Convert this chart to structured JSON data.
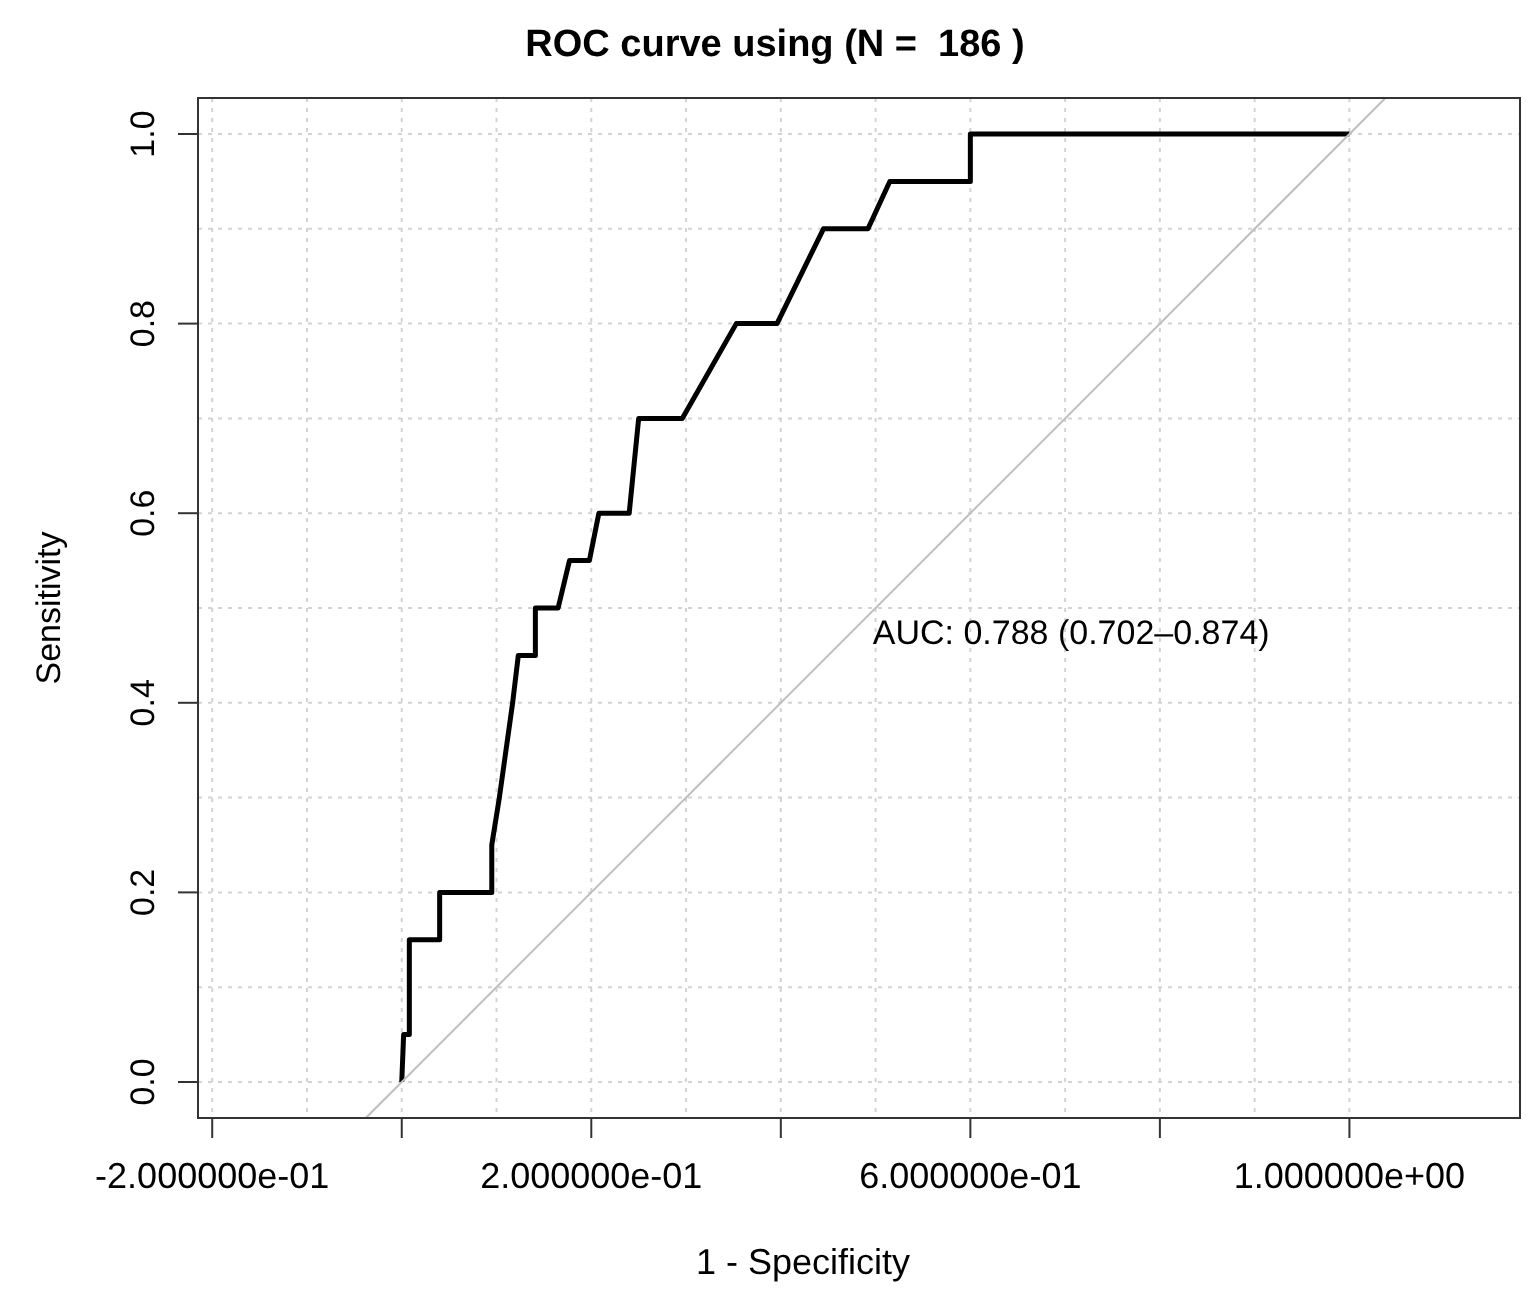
{
  "chart_data": {
    "type": "step",
    "title": "ROC curve using (N =  186 )",
    "xlabel": "1 - Specificity",
    "ylabel": "Sensitivity",
    "annotations": [
      "AUC: 0.788 (0.702–0.874)"
    ],
    "series": [
      {
        "color": "#000000",
        "x": [
          0,
          0.002,
          0.008,
          0.008,
          0.04,
          0.04,
          0.095,
          0.095,
          0.103,
          0.117,
          0.123,
          0.141,
          0.141,
          0.165,
          0.177,
          0.198,
          0.208,
          0.24,
          0.25,
          0.296,
          0.353,
          0.396,
          0.445,
          0.492,
          0.515,
          0.6,
          0.6,
          1.0
        ],
        "values": [
          0,
          0.05,
          0.05,
          0.15,
          0.15,
          0.2,
          0.2,
          0.25,
          0.3,
          0.4,
          0.45,
          0.45,
          0.5,
          0.5,
          0.55,
          0.55,
          0.6,
          0.6,
          0.7,
          0.7,
          0.8,
          0.8,
          0.9,
          0.9,
          0.95,
          0.95,
          1.0,
          1.0
        ]
      },
      {
        "type": "line",
        "color": "#bebebe",
        "x": [
          -0.038,
          1.038
        ],
        "values": [
          -0.038,
          1.038
        ]
      }
    ],
    "xlim": [
      -0.215,
      1.18
    ],
    "ylim": [
      -0.038,
      1.038
    ],
    "xticks": [
      {
        "value": -0.2,
        "label": "-2.000000e-01"
      },
      {
        "value": -0.1,
        "label": null
      },
      {
        "value": 0,
        "label": null
      },
      {
        "value": 0.1,
        "label": null
      },
      {
        "value": 0.2,
        "label": "2.000000e-01"
      },
      {
        "value": 0.3,
        "label": null
      },
      {
        "value": 0.4,
        "label": null
      },
      {
        "value": 0.5,
        "label": null
      },
      {
        "value": 0.6,
        "label": "6.000000e-01"
      },
      {
        "value": 0.7,
        "label": null
      },
      {
        "value": 0.8,
        "label": null
      },
      {
        "value": 0.9,
        "label": null
      },
      {
        "value": 1.0,
        "label": "1.000000e+00"
      }
    ],
    "yticks": [
      {
        "value": 0,
        "label": "0.0"
      },
      {
        "value": 0.1,
        "label": null
      },
      {
        "value": 0.2,
        "label": "0.2"
      },
      {
        "value": 0.3,
        "label": null
      },
      {
        "value": 0.4,
        "label": "0.4"
      },
      {
        "value": 0.5,
        "label": null
      },
      {
        "value": 0.6,
        "label": "0.6"
      },
      {
        "value": 0.7,
        "label": null
      },
      {
        "value": 0.8,
        "label": "0.8"
      },
      {
        "value": 0.9,
        "label": null
      },
      {
        "value": 1.0,
        "label": "1.0"
      }
    ],
    "grid": true,
    "marker": "none",
    "line_style": "solid"
  }
}
